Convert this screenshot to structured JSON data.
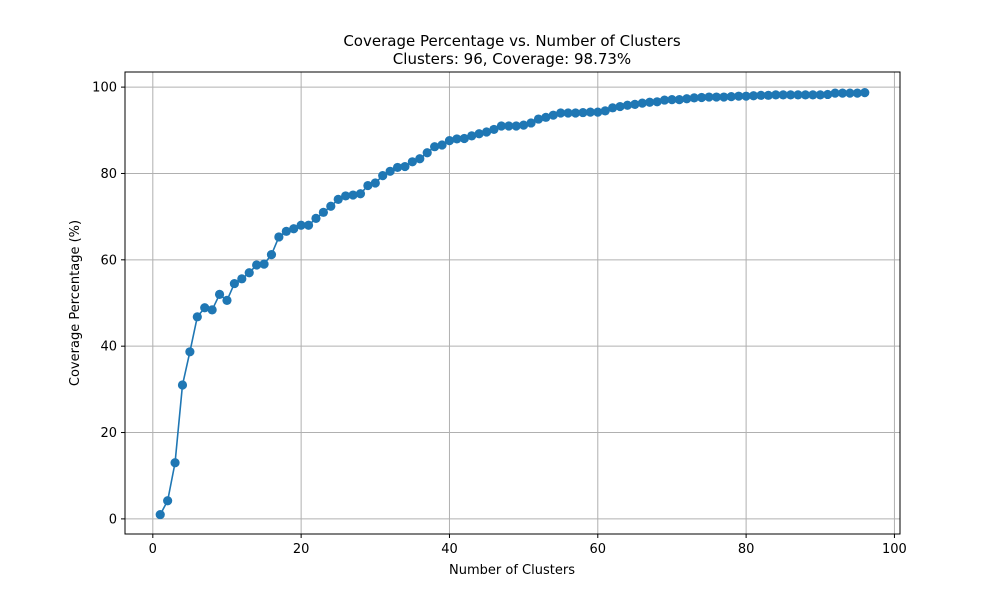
{
  "chart_data": {
    "type": "line",
    "title": "Coverage Percentage vs. Number of Clusters",
    "subtitle": "Clusters: 96, Coverage: 98.73%",
    "xlabel": "Number of Clusters",
    "ylabel": "Coverage Percentage (%)",
    "xlim": [
      -3.75,
      100.75
    ],
    "ylim": [
      -3.5,
      103.5
    ],
    "xticks": [
      0,
      20,
      40,
      60,
      80,
      100
    ],
    "yticks": [
      0,
      20,
      40,
      60,
      80,
      100
    ],
    "grid": true,
    "marker": "circle",
    "color": "#1f77b4",
    "series": [
      {
        "x": [
          1,
          2,
          3,
          4,
          5,
          6,
          7,
          8,
          9,
          10,
          11,
          12,
          13,
          14,
          15,
          16,
          17,
          18,
          19,
          20,
          21,
          22,
          23,
          24,
          25,
          26,
          27,
          28,
          29,
          30,
          31,
          32,
          33,
          34,
          35,
          36,
          37,
          38,
          39,
          40,
          41,
          42,
          43,
          44,
          45,
          46,
          47,
          48,
          49,
          50,
          51,
          52,
          53,
          54,
          55,
          56,
          57,
          58,
          59,
          60,
          61,
          62,
          63,
          64,
          65,
          66,
          67,
          68,
          69,
          70,
          71,
          72,
          73,
          74,
          75,
          76,
          77,
          78,
          79,
          80,
          81,
          82,
          83,
          84,
          85,
          86,
          87,
          88,
          89,
          90,
          91,
          92,
          93,
          94,
          95,
          96
        ],
        "values": [
          1.0,
          4.2,
          13.0,
          31.0,
          38.7,
          46.8,
          48.9,
          48.4,
          52.0,
          50.6,
          54.5,
          55.6,
          57.0,
          58.8,
          59.0,
          61.2,
          65.3,
          66.6,
          67.2,
          68.0,
          68.0,
          69.6,
          71.0,
          72.4,
          74.0,
          74.8,
          75.0,
          75.3,
          77.2,
          77.8,
          79.5,
          80.5,
          81.4,
          81.6,
          82.7,
          83.4,
          84.8,
          86.2,
          86.6,
          87.6,
          88.0,
          88.1,
          88.7,
          89.2,
          89.6,
          90.2,
          91.0,
          91.0,
          91.0,
          91.2,
          91.7,
          92.6,
          93.0,
          93.5,
          94.0,
          94.0,
          94.0,
          94.1,
          94.2,
          94.2,
          94.5,
          95.2,
          95.5,
          95.8,
          96.0,
          96.3,
          96.5,
          96.6,
          97.0,
          97.1,
          97.1,
          97.3,
          97.5,
          97.6,
          97.7,
          97.7,
          97.7,
          97.8,
          97.9,
          97.9,
          98.0,
          98.1,
          98.1,
          98.2,
          98.2,
          98.2,
          98.2,
          98.2,
          98.2,
          98.2,
          98.3,
          98.6,
          98.6,
          98.6,
          98.6,
          98.73
        ]
      }
    ]
  }
}
